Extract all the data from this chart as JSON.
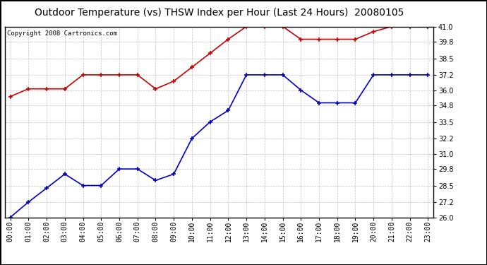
{
  "title": "Outdoor Temperature (vs) THSW Index per Hour (Last 24 Hours)  20080105",
  "copyright": "Copyright 2008 Cartronics.com",
  "hours": [
    "00:00",
    "01:00",
    "02:00",
    "03:00",
    "04:00",
    "05:00",
    "06:00",
    "07:00",
    "08:00",
    "09:00",
    "10:00",
    "11:00",
    "12:00",
    "13:00",
    "14:00",
    "15:00",
    "16:00",
    "17:00",
    "18:00",
    "19:00",
    "20:00",
    "21:00",
    "22:00",
    "23:00"
  ],
  "red_data": [
    35.5,
    36.1,
    36.1,
    36.1,
    37.2,
    37.2,
    37.2,
    37.2,
    36.1,
    36.7,
    37.8,
    38.9,
    40.0,
    41.0,
    41.0,
    41.0,
    40.0,
    40.0,
    40.0,
    40.0,
    40.6,
    41.0,
    41.0,
    41.0
  ],
  "blue_data": [
    26.0,
    27.2,
    28.3,
    29.4,
    28.5,
    28.5,
    29.8,
    29.8,
    28.9,
    29.4,
    32.2,
    33.5,
    34.4,
    37.2,
    37.2,
    37.2,
    36.0,
    35.0,
    35.0,
    35.0,
    37.2,
    37.2,
    37.2,
    37.2
  ],
  "ylim": [
    26.0,
    41.0
  ],
  "yticks": [
    26.0,
    27.2,
    28.5,
    29.8,
    31.0,
    32.2,
    33.5,
    34.8,
    36.0,
    37.2,
    38.5,
    39.8,
    41.0
  ],
  "ytick_labels": [
    "26.0",
    "27.2",
    "28.5",
    "29.8",
    "31.0",
    "32.2",
    "33.5",
    "34.8",
    "36.0",
    "37.2",
    "38.5",
    "39.8",
    "41.0"
  ],
  "red_color": "#cc0000",
  "blue_color": "#0000cc",
  "bg_color": "#ffffff",
  "grid_color": "#bbbbbb",
  "title_fontsize": 10,
  "tick_fontsize": 7,
  "copyright_fontsize": 6.5
}
